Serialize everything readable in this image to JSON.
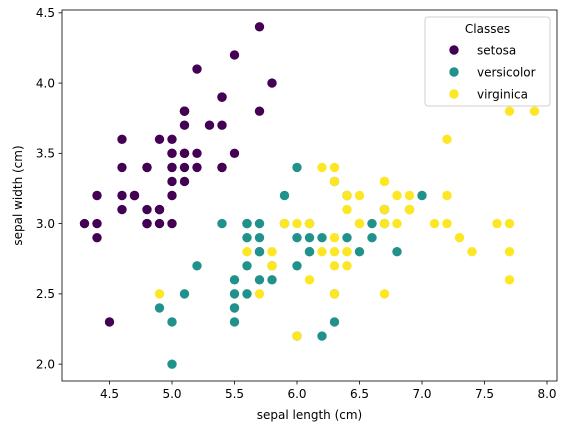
{
  "chart_data": {
    "type": "scatter",
    "xlabel": "sepal length (cm)",
    "ylabel": "sepal width (cm)",
    "xlim": [
      4.12,
      8.08
    ],
    "ylim": [
      1.88,
      4.52
    ],
    "xticks": [
      "4.5",
      "5.0",
      "5.5",
      "6.0",
      "6.5",
      "7.0",
      "7.5",
      "8.0"
    ],
    "xtick_values": [
      4.5,
      5.0,
      5.5,
      6.0,
      6.5,
      7.0,
      7.5,
      8.0
    ],
    "yticks": [
      "2.0",
      "2.5",
      "3.0",
      "3.5",
      "4.0",
      "4.5"
    ],
    "ytick_values": [
      2.0,
      2.5,
      3.0,
      3.5,
      4.0,
      4.5
    ],
    "grid": false,
    "legend": {
      "title": "Classes",
      "placement": "top-right"
    },
    "series": [
      {
        "name": "setosa",
        "color": "#440154",
        "points": [
          [
            5.1,
            3.5
          ],
          [
            4.9,
            3.0
          ],
          [
            4.7,
            3.2
          ],
          [
            4.6,
            3.1
          ],
          [
            5.0,
            3.6
          ],
          [
            5.4,
            3.9
          ],
          [
            4.6,
            3.4
          ],
          [
            5.0,
            3.4
          ],
          [
            4.4,
            2.9
          ],
          [
            4.9,
            3.1
          ],
          [
            5.4,
            3.7
          ],
          [
            4.8,
            3.4
          ],
          [
            4.8,
            3.0
          ],
          [
            4.3,
            3.0
          ],
          [
            5.8,
            4.0
          ],
          [
            5.7,
            4.4
          ],
          [
            5.4,
            3.9
          ],
          [
            5.1,
            3.5
          ],
          [
            5.7,
            3.8
          ],
          [
            5.1,
            3.8
          ],
          [
            5.4,
            3.4
          ],
          [
            5.1,
            3.7
          ],
          [
            4.6,
            3.6
          ],
          [
            5.1,
            3.3
          ],
          [
            4.8,
            3.4
          ],
          [
            5.0,
            3.0
          ],
          [
            5.0,
            3.4
          ],
          [
            5.2,
            3.5
          ],
          [
            5.2,
            3.4
          ],
          [
            4.7,
            3.2
          ],
          [
            4.8,
            3.1
          ],
          [
            5.4,
            3.4
          ],
          [
            5.2,
            4.1
          ],
          [
            5.5,
            4.2
          ],
          [
            4.9,
            3.1
          ],
          [
            5.0,
            3.2
          ],
          [
            5.5,
            3.5
          ],
          [
            4.9,
            3.6
          ],
          [
            4.4,
            3.0
          ],
          [
            5.1,
            3.4
          ],
          [
            5.0,
            3.5
          ],
          [
            4.5,
            2.3
          ],
          [
            4.4,
            3.2
          ],
          [
            5.0,
            3.5
          ],
          [
            5.1,
            3.8
          ],
          [
            4.8,
            3.0
          ],
          [
            5.1,
            3.8
          ],
          [
            4.6,
            3.2
          ],
          [
            5.3,
            3.7
          ],
          [
            5.0,
            3.3
          ]
        ]
      },
      {
        "name": "versicolor",
        "color": "#21918c",
        "points": [
          [
            7.0,
            3.2
          ],
          [
            6.4,
            3.2
          ],
          [
            6.9,
            3.1
          ],
          [
            5.5,
            2.3
          ],
          [
            6.5,
            2.8
          ],
          [
            5.7,
            2.8
          ],
          [
            6.3,
            3.3
          ],
          [
            4.9,
            2.4
          ],
          [
            6.6,
            2.9
          ],
          [
            5.2,
            2.7
          ],
          [
            5.0,
            2.0
          ],
          [
            5.9,
            3.0
          ],
          [
            6.0,
            2.2
          ],
          [
            6.1,
            2.9
          ],
          [
            5.6,
            2.9
          ],
          [
            6.7,
            3.1
          ],
          [
            5.6,
            3.0
          ],
          [
            5.8,
            2.7
          ],
          [
            6.2,
            2.2
          ],
          [
            5.6,
            2.5
          ],
          [
            5.9,
            3.2
          ],
          [
            6.1,
            2.8
          ],
          [
            6.3,
            2.5
          ],
          [
            6.1,
            2.8
          ],
          [
            6.4,
            2.9
          ],
          [
            6.6,
            3.0
          ],
          [
            6.8,
            2.8
          ],
          [
            6.7,
            3.0
          ],
          [
            6.0,
            2.9
          ],
          [
            5.7,
            2.6
          ],
          [
            5.5,
            2.4
          ],
          [
            5.5,
            2.4
          ],
          [
            5.8,
            2.7
          ],
          [
            6.0,
            2.7
          ],
          [
            5.4,
            3.0
          ],
          [
            6.0,
            3.4
          ],
          [
            6.7,
            3.1
          ],
          [
            6.3,
            2.3
          ],
          [
            5.6,
            3.0
          ],
          [
            5.5,
            2.5
          ],
          [
            5.5,
            2.6
          ],
          [
            6.1,
            3.0
          ],
          [
            5.8,
            2.6
          ],
          [
            5.0,
            2.3
          ],
          [
            5.6,
            2.7
          ],
          [
            5.7,
            3.0
          ],
          [
            5.7,
            2.9
          ],
          [
            6.2,
            2.9
          ],
          [
            5.1,
            2.5
          ],
          [
            5.7,
            2.8
          ]
        ]
      },
      {
        "name": "virginica",
        "color": "#fde725",
        "points": [
          [
            6.3,
            3.3
          ],
          [
            5.8,
            2.7
          ],
          [
            7.1,
            3.0
          ],
          [
            6.3,
            2.9
          ],
          [
            6.5,
            3.0
          ],
          [
            7.6,
            3.0
          ],
          [
            4.9,
            2.5
          ],
          [
            7.3,
            2.9
          ],
          [
            6.7,
            2.5
          ],
          [
            7.2,
            3.6
          ],
          [
            6.5,
            3.2
          ],
          [
            6.4,
            2.7
          ],
          [
            6.8,
            3.0
          ],
          [
            5.7,
            2.5
          ],
          [
            5.8,
            2.8
          ],
          [
            6.4,
            3.2
          ],
          [
            6.5,
            3.0
          ],
          [
            7.7,
            3.8
          ],
          [
            7.7,
            2.6
          ],
          [
            6.0,
            2.2
          ],
          [
            6.9,
            3.2
          ],
          [
            5.6,
            2.8
          ],
          [
            7.7,
            2.8
          ],
          [
            6.3,
            2.7
          ],
          [
            6.7,
            3.3
          ],
          [
            7.2,
            3.2
          ],
          [
            6.2,
            2.8
          ],
          [
            6.1,
            3.0
          ],
          [
            6.4,
            2.8
          ],
          [
            7.2,
            3.0
          ],
          [
            7.4,
            2.8
          ],
          [
            7.9,
            3.8
          ],
          [
            6.4,
            2.8
          ],
          [
            6.3,
            2.8
          ],
          [
            6.1,
            2.6
          ],
          [
            7.7,
            3.0
          ],
          [
            6.3,
            3.4
          ],
          [
            6.4,
            3.1
          ],
          [
            6.0,
            3.0
          ],
          [
            6.9,
            3.1
          ],
          [
            6.7,
            3.1
          ],
          [
            6.9,
            3.1
          ],
          [
            5.8,
            2.7
          ],
          [
            6.8,
            3.2
          ],
          [
            6.7,
            3.3
          ],
          [
            6.7,
            3.0
          ],
          [
            6.3,
            2.5
          ],
          [
            6.5,
            3.0
          ],
          [
            6.2,
            3.4
          ],
          [
            5.9,
            3.0
          ]
        ]
      }
    ]
  }
}
